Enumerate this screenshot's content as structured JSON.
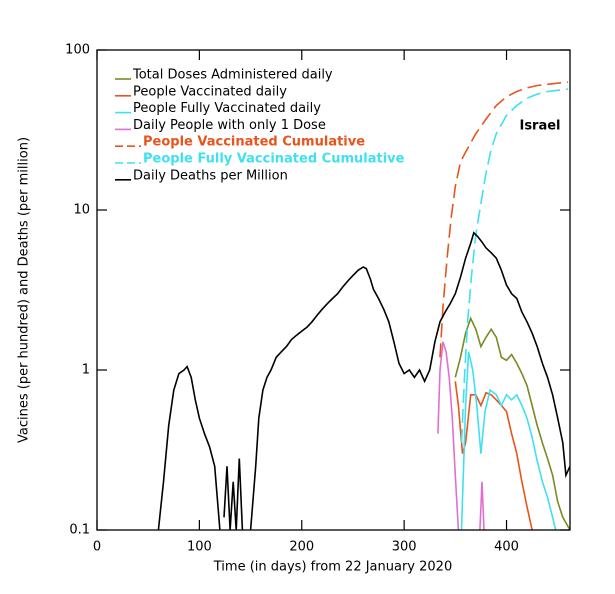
{
  "chart_data": {
    "type": "line",
    "xlabel": "Time (in days) from 22 January 2020",
    "ylabel": "Vacines (per hundred) and Deaths (per million)",
    "annotation": "Israel",
    "xlim": [
      0,
      462
    ],
    "xticks": [
      0,
      100,
      200,
      300,
      400
    ],
    "ylim": [
      0.1,
      100
    ],
    "yticks": [
      0.1,
      1,
      10,
      100
    ],
    "log_y": true,
    "legend": "upper left",
    "series": [
      {
        "name": "Total Doses Administered daily",
        "color": "#7a8a24",
        "dash": false,
        "x": [
          350,
          355,
          360,
          365,
          370,
          375,
          380,
          385,
          390,
          395,
          400,
          405,
          410,
          415,
          420,
          425,
          430,
          435,
          440,
          445,
          450,
          455,
          462
        ],
        "values": [
          0.9,
          1.2,
          1.7,
          2.1,
          1.8,
          1.4,
          1.6,
          1.8,
          1.6,
          1.2,
          1.15,
          1.25,
          1.1,
          0.95,
          0.8,
          0.6,
          0.45,
          0.35,
          0.28,
          0.22,
          0.15,
          0.12,
          0.1
        ]
      },
      {
        "name": "People Vaccinated daily",
        "color": "#e8541c",
        "dash": false,
        "x": [
          350,
          353,
          357,
          360,
          365,
          370,
          375,
          380,
          385,
          390,
          395,
          400,
          405,
          410,
          415,
          420,
          425
        ],
        "values": [
          0.85,
          0.6,
          0.3,
          0.35,
          0.7,
          0.7,
          0.6,
          0.72,
          0.7,
          0.65,
          0.6,
          0.55,
          0.4,
          0.3,
          0.2,
          0.14,
          0.1
        ]
      },
      {
        "name": "People Fully Vaccinated daily",
        "color": "#40e0f0",
        "dash": false,
        "x": [
          356,
          360,
          363,
          367,
          371,
          375,
          379,
          384,
          390,
          395,
          400,
          405,
          410,
          415,
          420,
          425,
          430,
          435,
          440,
          445,
          448
        ],
        "values": [
          0.1,
          0.6,
          1.3,
          1.0,
          0.6,
          0.3,
          0.55,
          0.75,
          0.7,
          0.6,
          0.7,
          0.65,
          0.7,
          0.6,
          0.5,
          0.38,
          0.27,
          0.2,
          0.16,
          0.12,
          0.1
        ]
      },
      {
        "name": "Daily People with only 1 Dose",
        "color": "#e070d0",
        "dash": false,
        "x": [
          333,
          335,
          338,
          341,
          344,
          347,
          350,
          353,
          null,
          374,
          376,
          378
        ],
        "values": [
          0.4,
          1.0,
          1.5,
          1.3,
          0.9,
          0.5,
          0.22,
          0.1,
          null,
          0.1,
          0.2,
          0.1
        ]
      },
      {
        "name": "People Vaccinated Cumulative",
        "color": "#e8541c",
        "dash": true,
        "x": [
          335,
          338,
          342,
          346,
          350,
          355,
          360,
          370,
          380,
          390,
          400,
          410,
          420,
          430,
          440,
          450,
          460
        ],
        "values": [
          1.2,
          2.5,
          5,
          9,
          14,
          20,
          23,
          30,
          37,
          45,
          51,
          55,
          58,
          60,
          61,
          62,
          63
        ]
      },
      {
        "name": "People Fully Vaccinated Cumulative",
        "color": "#40e0f0",
        "dash": true,
        "x": [
          356,
          359,
          362,
          366,
          370,
          375,
          380,
          385,
          390,
          400,
          410,
          420,
          430,
          440,
          450,
          460
        ],
        "values": [
          0.35,
          0.9,
          2,
          4,
          7,
          11,
          17,
          24,
          30,
          39,
          45,
          50,
          53,
          55,
          56,
          57
        ]
      },
      {
        "name": "Daily Deaths per Million",
        "color": "#000000",
        "dash": false,
        "x": [
          60,
          65,
          70,
          75,
          80,
          85,
          88,
          92,
          96,
          100,
          105,
          110,
          115,
          120,
          null,
          124,
          127,
          130,
          133,
          136,
          139,
          142,
          null,
          150,
          155,
          158,
          162,
          166,
          170,
          175,
          180,
          185,
          190,
          195,
          200,
          205,
          210,
          215,
          220,
          225,
          230,
          235,
          240,
          245,
          250,
          255,
          260,
          263,
          267,
          270,
          275,
          280,
          285,
          290,
          295,
          300,
          305,
          310,
          315,
          320,
          325,
          330,
          335,
          340,
          345,
          350,
          355,
          360,
          365,
          368,
          372,
          376,
          380,
          385,
          390,
          395,
          400,
          405,
          410,
          415,
          420,
          425,
          430,
          435,
          440,
          445,
          450,
          455,
          458,
          462
        ],
        "values": [
          0.1,
          0.2,
          0.45,
          0.75,
          0.95,
          1.0,
          1.05,
          0.9,
          0.65,
          0.5,
          0.4,
          0.33,
          0.25,
          0.1,
          null,
          0.12,
          0.25,
          0.1,
          0.2,
          0.1,
          0.28,
          0.1,
          null,
          0.1,
          0.25,
          0.5,
          0.75,
          0.9,
          1.0,
          1.2,
          1.3,
          1.4,
          1.55,
          1.65,
          1.75,
          1.85,
          2.0,
          2.2,
          2.4,
          2.6,
          2.8,
          3.0,
          3.3,
          3.6,
          3.9,
          4.2,
          4.4,
          4.3,
          3.7,
          3.2,
          2.8,
          2.4,
          2.0,
          1.5,
          1.1,
          0.95,
          1.0,
          0.9,
          1.0,
          0.85,
          1.0,
          1.5,
          2.0,
          2.3,
          2.6,
          3.0,
          3.8,
          5.0,
          6.2,
          7.2,
          6.8,
          6.3,
          5.8,
          5.4,
          5.0,
          4.2,
          3.4,
          3.0,
          2.8,
          2.3,
          2.0,
          1.7,
          1.4,
          1.1,
          0.9,
          0.7,
          0.5,
          0.35,
          0.22,
          0.25
        ]
      }
    ]
  }
}
